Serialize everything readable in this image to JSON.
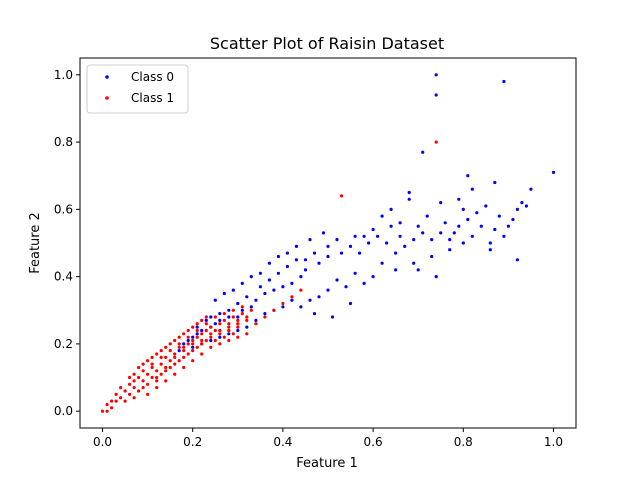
{
  "chart_data": {
    "type": "scatter",
    "title": "Scatter Plot of Raisin Dataset",
    "xlabel": "Feature 1",
    "ylabel": "Feature 2",
    "xlim": [
      -0.05,
      1.05
    ],
    "ylim": [
      -0.05,
      1.05
    ],
    "xticks": [
      "0.0",
      "0.2",
      "0.4",
      "0.6",
      "0.8",
      "1.0"
    ],
    "yticks": [
      "0.0",
      "0.2",
      "0.4",
      "0.6",
      "0.8",
      "1.0"
    ],
    "grid": false,
    "legend": "top-left",
    "series": [
      {
        "name": "Class 0",
        "color": "#0000ff",
        "points": [
          [
            0.74,
            1.0
          ],
          [
            0.74,
            0.94
          ],
          [
            0.89,
            0.98
          ],
          [
            0.71,
            0.77
          ],
          [
            0.81,
            0.7
          ],
          [
            1.0,
            0.71
          ],
          [
            0.95,
            0.66
          ],
          [
            0.94,
            0.61
          ],
          [
            0.87,
            0.68
          ],
          [
            0.82,
            0.66
          ],
          [
            0.79,
            0.63
          ],
          [
            0.92,
            0.45
          ],
          [
            0.86,
            0.48
          ],
          [
            0.55,
            0.32
          ],
          [
            0.51,
            0.28
          ],
          [
            0.47,
            0.29
          ],
          [
            0.74,
            0.4
          ],
          [
            0.7,
            0.42
          ],
          [
            0.68,
            0.65
          ],
          [
            0.68,
            0.63
          ],
          [
            0.66,
            0.56
          ],
          [
            0.64,
            0.55
          ],
          [
            0.6,
            0.54
          ],
          [
            0.58,
            0.52
          ],
          [
            0.56,
            0.52
          ],
          [
            0.52,
            0.51
          ],
          [
            0.5,
            0.46
          ],
          [
            0.48,
            0.44
          ],
          [
            0.45,
            0.42
          ],
          [
            0.44,
            0.4
          ],
          [
            0.42,
            0.38
          ],
          [
            0.4,
            0.37
          ],
          [
            0.38,
            0.36
          ],
          [
            0.36,
            0.35
          ],
          [
            0.34,
            0.33
          ],
          [
            0.33,
            0.31
          ],
          [
            0.31,
            0.3
          ],
          [
            0.3,
            0.28
          ],
          [
            0.28,
            0.28
          ],
          [
            0.26,
            0.27
          ],
          [
            0.25,
            0.26
          ],
          [
            0.24,
            0.25
          ],
          [
            0.22,
            0.24
          ],
          [
            0.21,
            0.23
          ],
          [
            0.2,
            0.22
          ],
          [
            0.19,
            0.21
          ],
          [
            0.18,
            0.2
          ],
          [
            0.17,
            0.18
          ],
          [
            0.25,
            0.33
          ],
          [
            0.27,
            0.35
          ],
          [
            0.29,
            0.36
          ],
          [
            0.31,
            0.38
          ],
          [
            0.33,
            0.4
          ],
          [
            0.35,
            0.41
          ],
          [
            0.37,
            0.44
          ],
          [
            0.39,
            0.46
          ],
          [
            0.41,
            0.47
          ],
          [
            0.43,
            0.49
          ],
          [
            0.46,
            0.51
          ],
          [
            0.49,
            0.53
          ],
          [
            0.62,
            0.58
          ],
          [
            0.64,
            0.6
          ],
          [
            0.66,
            0.52
          ],
          [
            0.7,
            0.55
          ],
          [
            0.72,
            0.58
          ],
          [
            0.75,
            0.62
          ],
          [
            0.76,
            0.56
          ],
          [
            0.78,
            0.53
          ],
          [
            0.8,
            0.6
          ],
          [
            0.82,
            0.52
          ],
          [
            0.84,
            0.55
          ],
          [
            0.86,
            0.5
          ],
          [
            0.88,
            0.58
          ],
          [
            0.9,
            0.55
          ],
          [
            0.92,
            0.6
          ],
          [
            0.8,
            0.5
          ],
          [
            0.77,
            0.48
          ],
          [
            0.73,
            0.46
          ],
          [
            0.69,
            0.44
          ],
          [
            0.65,
            0.42
          ],
          [
            0.62,
            0.44
          ],
          [
            0.6,
            0.4
          ],
          [
            0.58,
            0.38
          ],
          [
            0.56,
            0.41
          ],
          [
            0.54,
            0.37
          ],
          [
            0.52,
            0.39
          ],
          [
            0.5,
            0.36
          ],
          [
            0.48,
            0.34
          ],
          [
            0.46,
            0.33
          ],
          [
            0.44,
            0.31
          ],
          [
            0.42,
            0.33
          ],
          [
            0.4,
            0.31
          ],
          [
            0.38,
            0.3
          ],
          [
            0.36,
            0.29
          ],
          [
            0.34,
            0.27
          ],
          [
            0.32,
            0.25
          ],
          [
            0.3,
            0.24
          ],
          [
            0.28,
            0.23
          ],
          [
            0.26,
            0.22
          ],
          [
            0.24,
            0.21
          ],
          [
            0.22,
            0.2
          ],
          [
            0.2,
            0.19
          ],
          [
            0.45,
            0.45
          ],
          [
            0.47,
            0.47
          ],
          [
            0.5,
            0.49
          ],
          [
            0.53,
            0.47
          ],
          [
            0.55,
            0.49
          ],
          [
            0.57,
            0.47
          ],
          [
            0.59,
            0.5
          ],
          [
            0.61,
            0.52
          ],
          [
            0.63,
            0.5
          ],
          [
            0.65,
            0.47
          ],
          [
            0.67,
            0.49
          ],
          [
            0.69,
            0.51
          ],
          [
            0.71,
            0.53
          ],
          [
            0.73,
            0.51
          ],
          [
            0.75,
            0.53
          ],
          [
            0.77,
            0.51
          ],
          [
            0.79,
            0.55
          ],
          [
            0.81,
            0.57
          ],
          [
            0.83,
            0.59
          ],
          [
            0.85,
            0.61
          ],
          [
            0.87,
            0.54
          ],
          [
            0.89,
            0.52
          ],
          [
            0.91,
            0.57
          ],
          [
            0.93,
            0.62
          ],
          [
            0.35,
            0.37
          ],
          [
            0.37,
            0.39
          ],
          [
            0.39,
            0.41
          ],
          [
            0.41,
            0.43
          ],
          [
            0.43,
            0.45
          ],
          [
            0.32,
            0.34
          ],
          [
            0.3,
            0.32
          ],
          [
            0.28,
            0.3
          ],
          [
            0.26,
            0.29
          ],
          [
            0.24,
            0.28
          ],
          [
            0.23,
            0.27
          ],
          [
            0.21,
            0.25
          ]
        ]
      },
      {
        "name": "Class 1",
        "color": "#ff0000",
        "points": [
          [
            0.74,
            0.8
          ],
          [
            0.53,
            0.64
          ],
          [
            0.0,
            0.0
          ],
          [
            0.01,
            0.02
          ],
          [
            0.02,
            0.03
          ],
          [
            0.03,
            0.05
          ],
          [
            0.04,
            0.04
          ],
          [
            0.05,
            0.06
          ],
          [
            0.06,
            0.08
          ],
          [
            0.07,
            0.07
          ],
          [
            0.08,
            0.1
          ],
          [
            0.09,
            0.09
          ],
          [
            0.1,
            0.11
          ],
          [
            0.11,
            0.13
          ],
          [
            0.12,
            0.12
          ],
          [
            0.13,
            0.14
          ],
          [
            0.14,
            0.16
          ],
          [
            0.15,
            0.15
          ],
          [
            0.16,
            0.17
          ],
          [
            0.17,
            0.19
          ],
          [
            0.18,
            0.18
          ],
          [
            0.19,
            0.2
          ],
          [
            0.2,
            0.21
          ],
          [
            0.21,
            0.22
          ],
          [
            0.22,
            0.23
          ],
          [
            0.23,
            0.24
          ],
          [
            0.24,
            0.25
          ],
          [
            0.25,
            0.24
          ],
          [
            0.26,
            0.26
          ],
          [
            0.27,
            0.27
          ],
          [
            0.28,
            0.26
          ],
          [
            0.29,
            0.28
          ],
          [
            0.3,
            0.27
          ],
          [
            0.31,
            0.29
          ],
          [
            0.32,
            0.28
          ],
          [
            0.33,
            0.3
          ],
          [
            0.05,
            0.03
          ],
          [
            0.06,
            0.05
          ],
          [
            0.07,
            0.04
          ],
          [
            0.08,
            0.06
          ],
          [
            0.09,
            0.07
          ],
          [
            0.1,
            0.08
          ],
          [
            0.11,
            0.1
          ],
          [
            0.12,
            0.09
          ],
          [
            0.13,
            0.11
          ],
          [
            0.14,
            0.12
          ],
          [
            0.15,
            0.13
          ],
          [
            0.16,
            0.14
          ],
          [
            0.17,
            0.15
          ],
          [
            0.18,
            0.16
          ],
          [
            0.19,
            0.17
          ],
          [
            0.2,
            0.18
          ],
          [
            0.21,
            0.19
          ],
          [
            0.22,
            0.2
          ],
          [
            0.23,
            0.21
          ],
          [
            0.24,
            0.22
          ],
          [
            0.25,
            0.21
          ],
          [
            0.26,
            0.23
          ],
          [
            0.27,
            0.22
          ],
          [
            0.28,
            0.24
          ],
          [
            0.29,
            0.23
          ],
          [
            0.3,
            0.25
          ],
          [
            0.08,
            0.13
          ],
          [
            0.09,
            0.14
          ],
          [
            0.1,
            0.15
          ],
          [
            0.11,
            0.16
          ],
          [
            0.12,
            0.17
          ],
          [
            0.13,
            0.18
          ],
          [
            0.14,
            0.19
          ],
          [
            0.15,
            0.2
          ],
          [
            0.16,
            0.21
          ],
          [
            0.17,
            0.22
          ],
          [
            0.18,
            0.23
          ],
          [
            0.19,
            0.24
          ],
          [
            0.2,
            0.25
          ],
          [
            0.21,
            0.26
          ],
          [
            0.22,
            0.27
          ],
          [
            0.23,
            0.28
          ],
          [
            0.06,
            0.1
          ],
          [
            0.07,
            0.11
          ],
          [
            0.04,
            0.07
          ],
          [
            0.03,
            0.03
          ],
          [
            0.02,
            0.01
          ],
          [
            0.01,
            0.0
          ],
          [
            0.1,
            0.05
          ],
          [
            0.12,
            0.07
          ],
          [
            0.14,
            0.09
          ],
          [
            0.16,
            0.11
          ],
          [
            0.18,
            0.13
          ],
          [
            0.2,
            0.15
          ],
          [
            0.22,
            0.17
          ],
          [
            0.24,
            0.19
          ],
          [
            0.26,
            0.2
          ],
          [
            0.28,
            0.21
          ],
          [
            0.3,
            0.22
          ],
          [
            0.32,
            0.23
          ],
          [
            0.34,
            0.26
          ],
          [
            0.36,
            0.28
          ],
          [
            0.38,
            0.3
          ],
          [
            0.4,
            0.32
          ],
          [
            0.42,
            0.34
          ],
          [
            0.44,
            0.36
          ],
          [
            0.11,
            0.14
          ],
          [
            0.13,
            0.16
          ],
          [
            0.15,
            0.18
          ],
          [
            0.17,
            0.2
          ],
          [
            0.19,
            0.22
          ],
          [
            0.21,
            0.24
          ],
          [
            0.23,
            0.26
          ],
          [
            0.25,
            0.28
          ],
          [
            0.27,
            0.29
          ],
          [
            0.29,
            0.3
          ],
          [
            0.31,
            0.31
          ],
          [
            0.12,
            0.1
          ],
          [
            0.14,
            0.13
          ],
          [
            0.16,
            0.16
          ],
          [
            0.18,
            0.19
          ],
          [
            0.2,
            0.2
          ],
          [
            0.22,
            0.21
          ],
          [
            0.24,
            0.23
          ],
          [
            0.26,
            0.24
          ],
          [
            0.28,
            0.25
          ],
          [
            0.3,
            0.26
          ],
          [
            0.32,
            0.27
          ],
          [
            0.09,
            0.12
          ],
          [
            0.07,
            0.09
          ]
        ]
      }
    ]
  }
}
